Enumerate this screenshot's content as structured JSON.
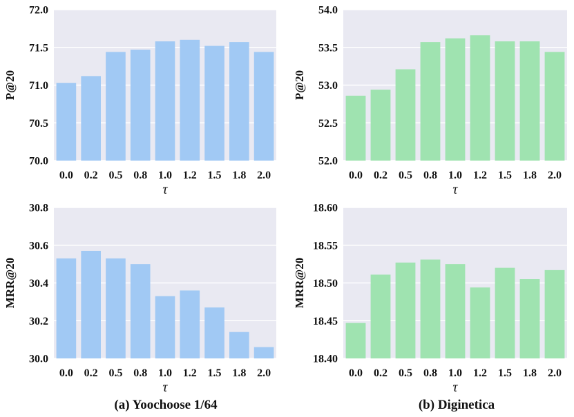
{
  "colors": {
    "panel_bg": "#e9e9f2",
    "grid": "#ffffff",
    "blue": "#a1c9f4",
    "green": "#9fe3b0"
  },
  "captions": {
    "left": "(a) Yoochoose 1/64",
    "right": "(b) Diginetica"
  },
  "chart_data": [
    {
      "id": "yoochoose-p20",
      "type": "bar",
      "color_key": "blue",
      "categories": [
        "0.0",
        "0.2",
        "0.5",
        "0.8",
        "1.0",
        "1.2",
        "1.5",
        "1.8",
        "2.0"
      ],
      "values": [
        71.03,
        71.12,
        71.44,
        71.47,
        71.58,
        71.6,
        71.52,
        71.57,
        71.44
      ],
      "title": "",
      "xlabel": "τ",
      "ylabel": "P@20",
      "ylim": [
        70.0,
        72.0
      ],
      "yticks": [
        "70.0",
        "70.5",
        "71.0",
        "71.5",
        "72.0"
      ],
      "ytick_values": [
        70.0,
        70.5,
        71.0,
        71.5,
        72.0
      ]
    },
    {
      "id": "diginetica-p20",
      "type": "bar",
      "color_key": "green",
      "categories": [
        "0.0",
        "0.2",
        "0.5",
        "0.8",
        "1.0",
        "1.2",
        "1.5",
        "1.8",
        "2.0"
      ],
      "values": [
        52.86,
        52.94,
        53.21,
        53.57,
        53.62,
        53.66,
        53.58,
        53.58,
        53.44
      ],
      "title": "",
      "xlabel": "τ",
      "ylabel": "P@20",
      "ylim": [
        52.0,
        54.0
      ],
      "yticks": [
        "52.0",
        "52.5",
        "53.0",
        "53.5",
        "54.0"
      ],
      "ytick_values": [
        52.0,
        52.5,
        53.0,
        53.5,
        54.0
      ]
    },
    {
      "id": "yoochoose-mrr20",
      "type": "bar",
      "color_key": "blue",
      "categories": [
        "0.0",
        "0.2",
        "0.5",
        "0.8",
        "1.0",
        "1.2",
        "1.5",
        "1.8",
        "2.0"
      ],
      "values": [
        30.53,
        30.57,
        30.53,
        30.5,
        30.33,
        30.36,
        30.27,
        30.14,
        30.06
      ],
      "title": "",
      "xlabel": "τ",
      "ylabel": "MRR@20",
      "ylim": [
        30.0,
        30.8
      ],
      "yticks": [
        "30.0",
        "30.2",
        "30.4",
        "30.6",
        "30.8"
      ],
      "ytick_values": [
        30.0,
        30.2,
        30.4,
        30.6,
        30.8
      ]
    },
    {
      "id": "diginetica-mrr20",
      "type": "bar",
      "color_key": "green",
      "categories": [
        "0.0",
        "0.2",
        "0.5",
        "0.8",
        "1.0",
        "1.2",
        "1.5",
        "1.8",
        "2.0"
      ],
      "values": [
        18.447,
        18.511,
        18.527,
        18.531,
        18.525,
        18.494,
        18.52,
        18.505,
        18.517
      ],
      "title": "",
      "xlabel": "τ",
      "ylabel": "MRR@20",
      "ylim": [
        18.4,
        18.6
      ],
      "yticks": [
        "18.40",
        "18.45",
        "18.50",
        "18.55",
        "18.60"
      ],
      "ytick_values": [
        18.4,
        18.45,
        18.5,
        18.55,
        18.6
      ]
    }
  ]
}
